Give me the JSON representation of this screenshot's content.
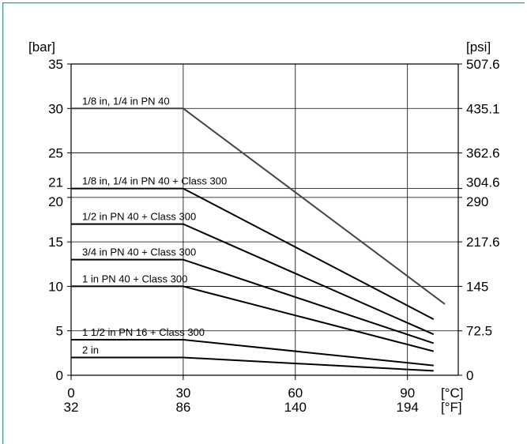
{
  "colors": {
    "frame": "#1aa9a9",
    "axis": "#000000",
    "grid": "#000000",
    "line": "#000000",
    "top_series": "#444444"
  },
  "chart_data": {
    "type": "line",
    "title": "",
    "left_unit": "[bar]",
    "right_unit": "[psi]",
    "x_unit_c": "[°C]",
    "x_unit_f": "[°F]",
    "xlim": [
      0,
      100
    ],
    "ylim": [
      0,
      35
    ],
    "grid": true,
    "x_ticks": [
      {
        "c": "0",
        "f": "32",
        "value": 0
      },
      {
        "c": "30",
        "f": "86",
        "value": 30
      },
      {
        "c": "60",
        "f": "140",
        "value": 60
      },
      {
        "c": "90",
        "f": "194",
        "value": 90
      }
    ],
    "left_ticks": [
      {
        "label": "0",
        "value": 0
      },
      {
        "label": "5",
        "value": 5
      },
      {
        "label": "10",
        "value": 10
      },
      {
        "label": "15",
        "value": 15
      },
      {
        "label": "20",
        "value": 20
      },
      {
        "label": "21",
        "value": 21
      },
      {
        "label": "25",
        "value": 25
      },
      {
        "label": "30",
        "value": 30
      },
      {
        "label": "35",
        "value": 35
      }
    ],
    "right_ticks": [
      {
        "label": "0",
        "value": 0
      },
      {
        "label": "72.5",
        "value": 5
      },
      {
        "label": "145",
        "value": 10
      },
      {
        "label": "217.6",
        "value": 15
      },
      {
        "label": "290",
        "value": 20
      },
      {
        "label": "304.6",
        "value": 21
      },
      {
        "label": "362.6",
        "value": 25
      },
      {
        "label": "435.1",
        "value": 30
      },
      {
        "label": "507.6",
        "value": 35
      }
    ],
    "series": [
      {
        "name": "1/8 in, 1/4 in  PN 40",
        "x": [
          0,
          30,
          100
        ],
        "y": [
          30,
          30,
          8.0
        ]
      },
      {
        "name": "1/8 in, 1/4 in  PN 40 + Class 300",
        "x": [
          0,
          30,
          97
        ],
        "y": [
          21,
          21,
          6.3
        ]
      },
      {
        "name": "1/2 in  PN 40 + Class 300",
        "x": [
          0,
          30,
          97
        ],
        "y": [
          17,
          17,
          4.6
        ]
      },
      {
        "name": "3/4 in  PN 40 + Class 300",
        "x": [
          0,
          30,
          97
        ],
        "y": [
          13,
          13,
          3.6
        ]
      },
      {
        "name": "1 in  PN 40 + Class 300",
        "x": [
          0,
          30,
          97
        ],
        "y": [
          10,
          10,
          2.7
        ]
      },
      {
        "name": "1 1/2 in  PN 16 + Class 300",
        "x": [
          0,
          30,
          97
        ],
        "y": [
          4,
          4,
          1.1
        ]
      },
      {
        "name": "2 in",
        "x": [
          0,
          30,
          97
        ],
        "y": [
          2,
          2,
          0.5
        ]
      }
    ]
  }
}
